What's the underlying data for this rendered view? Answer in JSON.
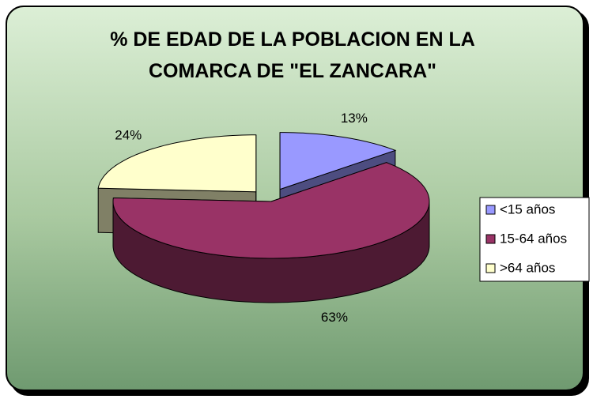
{
  "chart_data": {
    "type": "pie",
    "title": "% DE EDAD DE LA POBLACION EN LA COMARCA DE \"EL ZANCARA\"",
    "categories": [
      "<15 años",
      "15-64 años",
      ">64 años"
    ],
    "values": [
      13,
      63,
      24
    ],
    "value_labels": [
      "13%",
      "63%",
      "24%"
    ],
    "colors": [
      "#9999ff",
      "#993366",
      "#ffffcc"
    ],
    "legend": "right"
  }
}
